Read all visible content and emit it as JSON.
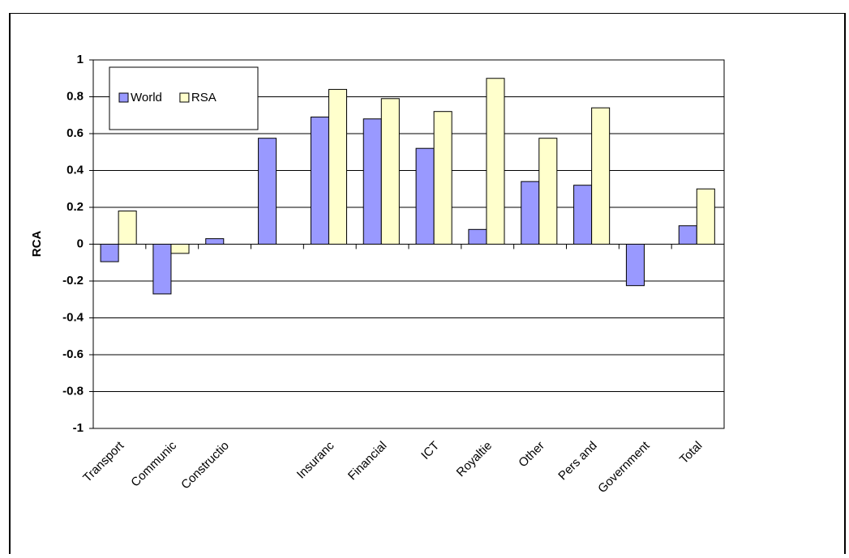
{
  "chart_data": {
    "type": "bar",
    "y_label": "RCA",
    "categories": [
      "Transport",
      "Communic",
      "Constructio",
      null,
      "Insuranc",
      "Financial",
      "ICT",
      "Royaltie",
      "Other",
      "Pers and",
      "Government",
      "Total"
    ],
    "series": [
      {
        "name": "World",
        "color": "#9999ff",
        "values": [
          -0.095,
          -0.27,
          0.03,
          0.575,
          0.69,
          0.68,
          0.52,
          0.08,
          0.34,
          0.32,
          -0.225,
          0.1
        ]
      },
      {
        "name": "RSA",
        "color": "#ffffcc",
        "values": [
          0.18,
          -0.05,
          null,
          null,
          0.84,
          0.79,
          0.72,
          0.9,
          0.575,
          0.74,
          null,
          0.3
        ]
      }
    ],
    "ylim": [
      -1,
      1
    ],
    "yticks": [
      -1,
      -0.8,
      -0.6,
      -0.4,
      -0.2,
      0,
      0.2,
      0.4,
      0.6,
      0.8,
      1
    ],
    "grid": true,
    "legend": "top-left"
  }
}
